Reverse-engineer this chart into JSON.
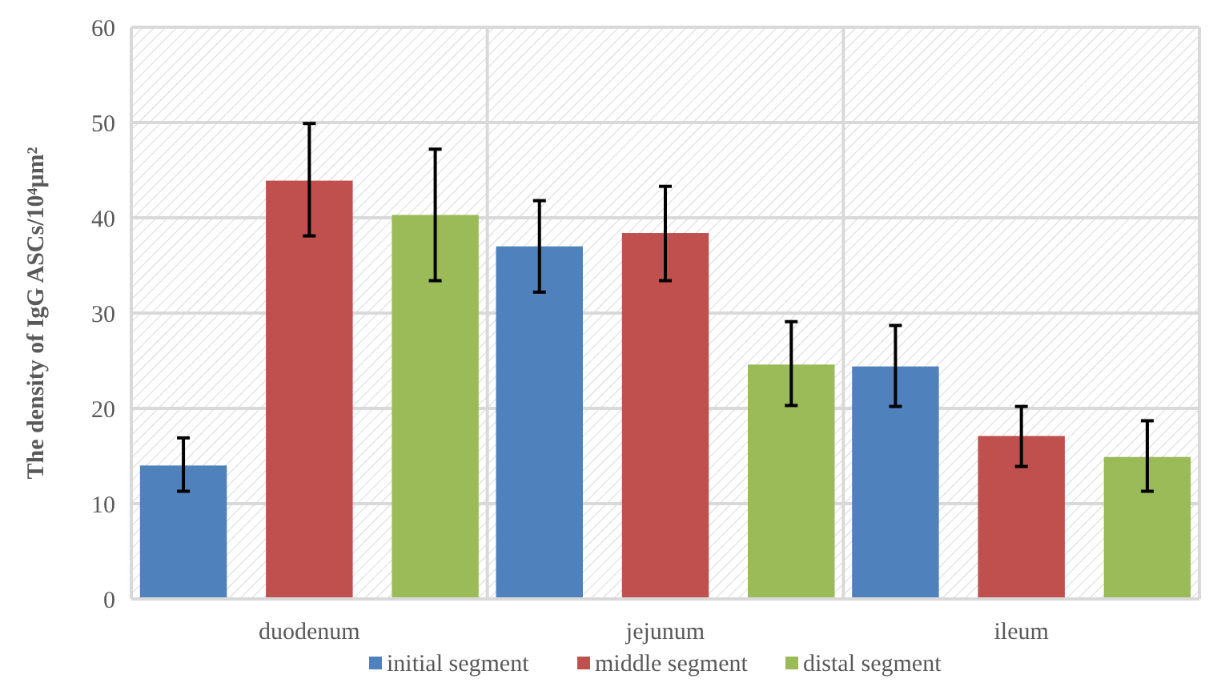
{
  "chart_data": {
    "type": "bar",
    "ylabel": "The density of IgG ASCs/10⁴μm²",
    "categories": [
      "duodenum",
      "jejunum",
      "ileum"
    ],
    "series": [
      {
        "name": "initial segment",
        "color": "#4f81bd",
        "values": [
          14.0,
          37.0,
          24.4
        ],
        "errors": [
          [
            11.3,
            16.9
          ],
          [
            32.2,
            41.8
          ],
          [
            20.2,
            28.7
          ]
        ]
      },
      {
        "name": "middle segment",
        "color": "#c0504d",
        "values": [
          43.9,
          38.4,
          17.1
        ],
        "errors": [
          [
            38.1,
            49.9
          ],
          [
            33.4,
            43.3
          ],
          [
            13.9,
            20.2
          ]
        ]
      },
      {
        "name": "distal segment",
        "color": "#9bbb59",
        "values": [
          40.3,
          24.6,
          14.9
        ],
        "errors": [
          [
            33.4,
            47.2
          ],
          [
            20.3,
            29.1
          ],
          [
            11.3,
            18.7
          ]
        ]
      }
    ],
    "ylim": [
      0,
      60
    ],
    "yticks": [
      0,
      10,
      20,
      30,
      40,
      50,
      60
    ],
    "grid": true,
    "legend": "bottom"
  }
}
